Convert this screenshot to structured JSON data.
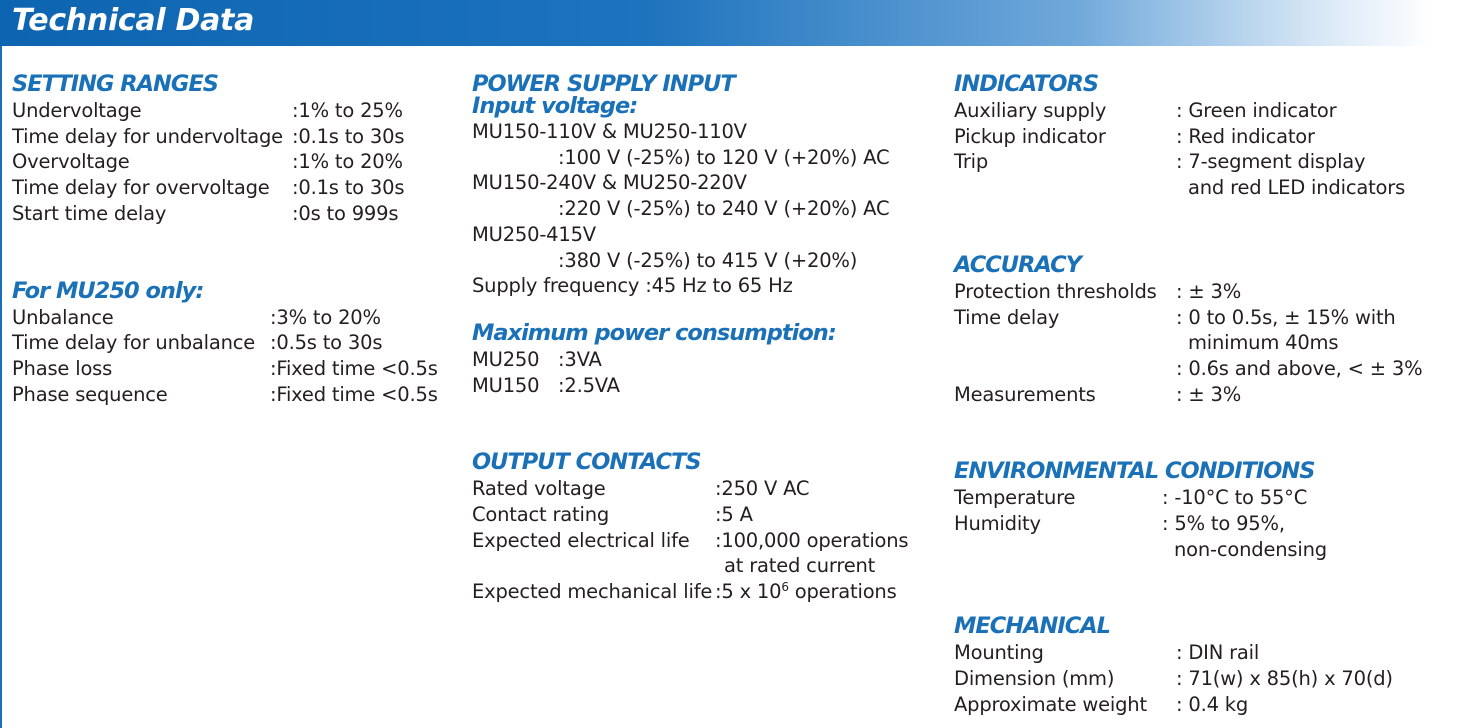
{
  "header": {
    "title": "Technical Data"
  },
  "setting_ranges": {
    "heading": "SETTING RANGES",
    "rows": [
      {
        "label": "Undervoltage",
        "value": ":1% to 25%"
      },
      {
        "label": "Time delay for undervoltage",
        "value": ":0.1s to 30s"
      },
      {
        "label": "Overvoltage",
        "value": ":1% to 20%"
      },
      {
        "label": "Time delay for overvoltage",
        "value": ":0.1s to 30s"
      },
      {
        "label": "Start time delay",
        "value": ":0s to 999s"
      }
    ]
  },
  "mu250_only": {
    "heading": "For MU250 only:",
    "rows": [
      {
        "label": "Unbalance",
        "value": ":3% to 20%"
      },
      {
        "label": "Time delay for unbalance",
        "value": ":0.5s to 30s"
      },
      {
        "label": "Phase loss",
        "value": ":Fixed time <0.5s"
      },
      {
        "label": "Phase sequence",
        "value": ":Fixed time <0.5s"
      }
    ]
  },
  "power_supply": {
    "heading": "POWER SUPPLY INPUT",
    "subheading": "Input voltage:",
    "lines": [
      "MU150-110V & MU250-110V",
      ":100 V (-25%) to 120 V (+20%) AC",
      "MU150-240V & MU250-220V",
      ":220 V (-25%) to 240 V (+20%) AC",
      "MU250-415V",
      ":380 V (-25%) to 415 V (+20%)",
      "Supply frequency :45 Hz to 65 Hz"
    ]
  },
  "max_power": {
    "heading": "Maximum power consumption:",
    "rows": [
      {
        "label": "MU250",
        "value": ":3VA"
      },
      {
        "label": "MU150",
        "value": ":2.5VA"
      }
    ]
  },
  "output_contacts": {
    "heading": "OUTPUT CONTACTS",
    "rows": [
      {
        "label": "Rated voltage",
        "value": ":250 V AC"
      },
      {
        "label": "Contact rating",
        "value": ":5 A"
      },
      {
        "label": "Expected electrical life",
        "value": ":100,000 operations"
      }
    ],
    "electrical_cont": "at rated current",
    "mechanical": {
      "label": "Expected mechanical life",
      "value_prefix": ":5 x 10",
      "exponent": "6",
      "value_suffix": " operations"
    }
  },
  "indicators": {
    "heading": "INDICATORS",
    "rows": [
      {
        "label": "Auxiliary supply",
        "value": ": Green indicator"
      },
      {
        "label": "Pickup indicator",
        "value": ": Red indicator"
      },
      {
        "label": "Trip",
        "value": ": 7-segment display"
      }
    ],
    "trip_cont": "and red LED indicators"
  },
  "accuracy": {
    "heading": "ACCURACY",
    "rows": [
      {
        "label": "Protection thresholds",
        "value": ": ± 3%"
      },
      {
        "label": "Time delay",
        "value": ": 0 to 0.5s, ± 15% with"
      }
    ],
    "time_cont": "minimum 40ms",
    "time_cont2": ": 0.6s and above, < ± 3%",
    "measurements": {
      "label": "Measurements",
      "value": ": ± 3%"
    }
  },
  "environmental": {
    "heading": "ENVIRONMENTAL CONDITIONS",
    "rows": [
      {
        "label": "Temperature",
        "value": ": -10°C to 55°C"
      },
      {
        "label": "Humidity",
        "value": ": 5% to 95%,"
      }
    ],
    "humidity_cont": "non-condensing"
  },
  "mechanical": {
    "heading": "MECHANICAL",
    "rows": [
      {
        "label": "Mounting",
        "value": ": DIN rail"
      },
      {
        "label": "Dimension (mm)",
        "value": ": 71(w) x 85(h) x 70(d)"
      },
      {
        "label": "Approximate weight",
        "value": ": 0.4 kg"
      }
    ]
  }
}
